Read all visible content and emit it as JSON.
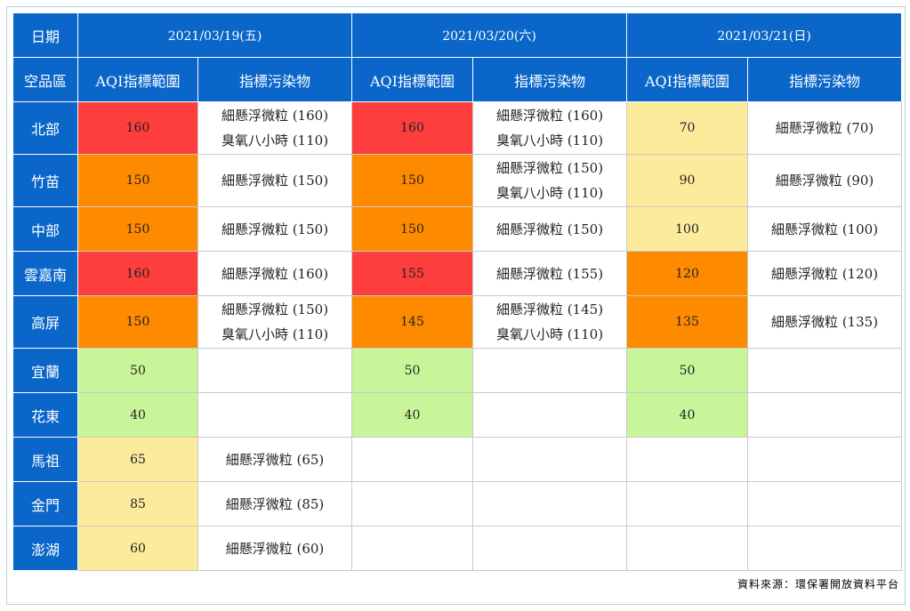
{
  "header": {
    "date_label": "日期",
    "region_label": "空品區",
    "dates": [
      "2021/03/19(五)",
      "2021/03/20(六)",
      "2021/03/21(日)"
    ],
    "aqi_label": "AQI指標範圍",
    "pollutant_label": "指標污染物"
  },
  "rows": [
    {
      "region": "北部",
      "d1": {
        "aqi": "160",
        "level": "red",
        "pollutants": [
          "細懸浮微粒 (160)",
          "臭氧八小時 (110)"
        ]
      },
      "d2": {
        "aqi": "160",
        "level": "red",
        "pollutants": [
          "細懸浮微粒 (160)",
          "臭氧八小時 (110)"
        ]
      },
      "d3": {
        "aqi": "70",
        "level": "yellow",
        "pollutants": [
          "細懸浮微粒 (70)"
        ]
      }
    },
    {
      "region": "竹苗",
      "d1": {
        "aqi": "150",
        "level": "orange",
        "pollutants": [
          "細懸浮微粒 (150)"
        ]
      },
      "d2": {
        "aqi": "150",
        "level": "orange",
        "pollutants": [
          "細懸浮微粒 (150)",
          "臭氧八小時 (110)"
        ]
      },
      "d3": {
        "aqi": "90",
        "level": "yellow",
        "pollutants": [
          "細懸浮微粒 (90)"
        ]
      }
    },
    {
      "region": "中部",
      "d1": {
        "aqi": "150",
        "level": "orange",
        "pollutants": [
          "細懸浮微粒 (150)"
        ]
      },
      "d2": {
        "aqi": "150",
        "level": "orange",
        "pollutants": [
          "細懸浮微粒 (150)"
        ]
      },
      "d3": {
        "aqi": "100",
        "level": "yellow",
        "pollutants": [
          "細懸浮微粒 (100)"
        ]
      }
    },
    {
      "region": "雲嘉南",
      "d1": {
        "aqi": "160",
        "level": "red",
        "pollutants": [
          "細懸浮微粒 (160)"
        ]
      },
      "d2": {
        "aqi": "155",
        "level": "red",
        "pollutants": [
          "細懸浮微粒 (155)"
        ]
      },
      "d3": {
        "aqi": "120",
        "level": "orange",
        "pollutants": [
          "細懸浮微粒 (120)"
        ]
      }
    },
    {
      "region": "高屏",
      "d1": {
        "aqi": "150",
        "level": "orange",
        "pollutants": [
          "細懸浮微粒 (150)",
          "臭氧八小時 (110)"
        ]
      },
      "d2": {
        "aqi": "145",
        "level": "orange",
        "pollutants": [
          "細懸浮微粒 (145)",
          "臭氧八小時 (110)"
        ]
      },
      "d3": {
        "aqi": "135",
        "level": "orange",
        "pollutants": [
          "細懸浮微粒 (135)"
        ]
      }
    },
    {
      "region": "宜蘭",
      "d1": {
        "aqi": "50",
        "level": "green",
        "pollutants": []
      },
      "d2": {
        "aqi": "50",
        "level": "green",
        "pollutants": []
      },
      "d3": {
        "aqi": "50",
        "level": "green",
        "pollutants": []
      }
    },
    {
      "region": "花東",
      "d1": {
        "aqi": "40",
        "level": "green",
        "pollutants": []
      },
      "d2": {
        "aqi": "40",
        "level": "green",
        "pollutants": []
      },
      "d3": {
        "aqi": "40",
        "level": "green",
        "pollutants": []
      }
    },
    {
      "region": "馬祖",
      "d1": {
        "aqi": "65",
        "level": "yellow",
        "pollutants": [
          "細懸浮微粒 (65)"
        ]
      },
      "d2": {
        "aqi": "",
        "level": "empty",
        "pollutants": []
      },
      "d3": {
        "aqi": "",
        "level": "empty",
        "pollutants": []
      }
    },
    {
      "region": "金門",
      "d1": {
        "aqi": "85",
        "level": "yellow",
        "pollutants": [
          "細懸浮微粒 (85)"
        ]
      },
      "d2": {
        "aqi": "",
        "level": "empty",
        "pollutants": []
      },
      "d3": {
        "aqi": "",
        "level": "empty",
        "pollutants": []
      }
    },
    {
      "region": "澎湖",
      "d1": {
        "aqi": "60",
        "level": "yellow",
        "pollutants": [
          "細懸浮微粒 (60)"
        ]
      },
      "d2": {
        "aqi": "",
        "level": "empty",
        "pollutants": []
      },
      "d3": {
        "aqi": "",
        "level": "empty",
        "pollutants": []
      }
    }
  ],
  "colors": {
    "header_bg": "#0a66c8",
    "red": "#fe3d3d",
    "orange": "#fe8a00",
    "yellow": "#fdeb9c",
    "green": "#c8f59a"
  },
  "footer": {
    "source": "資料來源：環保署開放資料平台"
  }
}
